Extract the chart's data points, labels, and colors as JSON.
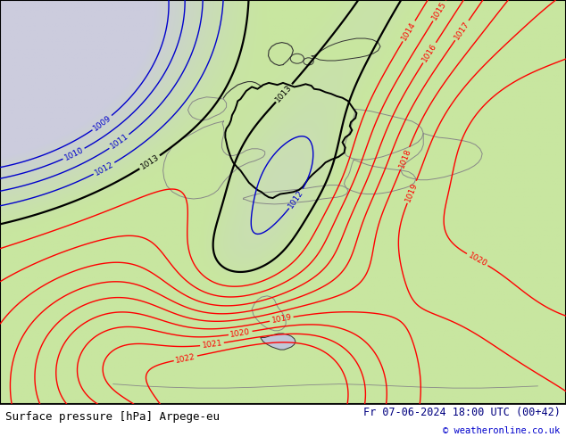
{
  "title_left": "Surface pressure [hPa] Arpege-eu",
  "title_right": "Fr 07-06-2024 18:00 UTC (00+42)",
  "copyright": "© weatheronline.co.uk",
  "land_color": "#c8e6a0",
  "sea_color": "#c8c8d8",
  "low_pressure_bg": "#d0d0e0",
  "border_color": "#000000",
  "bottom_bg": "#ffffff",
  "text_color_left": "#000000",
  "text_color_right": "#000080",
  "copyright_color": "#0000cc",
  "blue_line_color": "#0000cc",
  "black_line_color": "#000000",
  "red_line_color": "#ff0000",
  "figsize": [
    6.34,
    4.9
  ],
  "dpi": 100,
  "blue_levels": [
    1009,
    1010,
    1011,
    1012
  ],
  "black_levels": [
    1013
  ],
  "red_levels": [
    1014,
    1015,
    1016,
    1017,
    1018,
    1019,
    1020,
    1021,
    1022
  ],
  "label_fontsize": 6.5
}
